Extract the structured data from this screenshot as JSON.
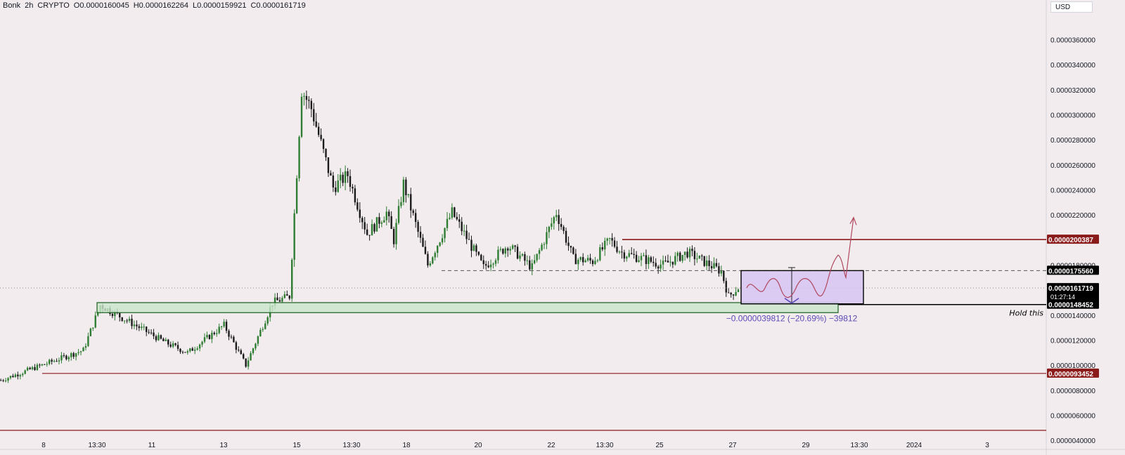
{
  "header": {
    "symbol": "Bonk",
    "interval": "2h",
    "exchange": "CRYPTO",
    "open": "O0.0000160045",
    "high": "H0.0000162264",
    "low": "L0.0000159921",
    "close": "C0.0000161719"
  },
  "currency": "USD",
  "colors": {
    "background": "#f2ecee",
    "bull": "#2e7d32",
    "bear": "#1b1b1b",
    "resistance": "#8b1a1a",
    "zone_fill": "#c8e6c9",
    "zone_stroke": "#1b5e20",
    "box_fill": "#d7c5f3",
    "measure_text": "#5b4bb7",
    "path": "#b0475d"
  },
  "chart_data": {
    "type": "candlestick",
    "interval": "2h",
    "ylim": [
      4.4e-06,
      3.76e-05
    ],
    "y_ticks": [
      "0.0000360000",
      "0.0000340000",
      "0.0000320000",
      "0.0000300000",
      "0.0000280000",
      "0.0000260000",
      "0.0000240000",
      "0.0000220000",
      "0.0000180000",
      "0.0000140000",
      "0.0000120000",
      "0.0000100000",
      "0.0000080000",
      "0.0000060000",
      "0.0000040000"
    ],
    "x_ticks": [
      "8",
      "13:30",
      "11",
      "13",
      "15",
      "13:30",
      "18",
      "20",
      "22",
      "13:30",
      "25",
      "27",
      "29",
      "13:30",
      "2024",
      "3"
    ],
    "price_labels": [
      {
        "value": "0.0000200387",
        "style": "red"
      },
      {
        "value": "0.0000175560",
        "style": "dark"
      },
      {
        "value": "0.0000161719",
        "style": "dark",
        "sub": "01:27:14"
      },
      {
        "value": "0.0000148452",
        "style": "dark"
      },
      {
        "value": "0.0000093452",
        "style": "red"
      }
    ],
    "levels": [
      {
        "price": 2.00387e-05,
        "kind": "resistance"
      },
      {
        "price": 1.7556e-05,
        "kind": "dashed"
      },
      {
        "price": 1.48452e-05,
        "kind": "support"
      },
      {
        "price": 9.3452e-06,
        "kind": "support-red"
      },
      {
        "price": 4.8e-06,
        "kind": "bottom-red"
      }
    ],
    "demand_zone": {
      "top": 1.5e-05,
      "bottom": 1.42e-05
    },
    "measure_text": "−0.0000039812 (−20.69%) −39812",
    "annotation": "Hold this",
    "path": [
      {
        "bar": 0,
        "price": 8.8e-06
      },
      {
        "bar": 14,
        "price": 9.8e-06
      },
      {
        "bar": 34,
        "price": 1.12e-05
      },
      {
        "bar": 41,
        "price": 1.48e-05
      },
      {
        "bar": 68,
        "price": 1.18e-05
      },
      {
        "bar": 77,
        "price": 1.1e-05
      },
      {
        "bar": 92,
        "price": 1.32e-05
      },
      {
        "bar": 101,
        "price": 1e-05
      },
      {
        "bar": 112,
        "price": 1.5e-05
      },
      {
        "bar": 119,
        "price": 1.55e-05
      },
      {
        "bar": 124,
        "price": 3.2e-05
      },
      {
        "bar": 128,
        "price": 3.05e-05
      },
      {
        "bar": 137,
        "price": 2.42e-05
      },
      {
        "bar": 143,
        "price": 2.52e-05
      },
      {
        "bar": 151,
        "price": 2.05e-05
      },
      {
        "bar": 159,
        "price": 2.22e-05
      },
      {
        "bar": 162,
        "price": 2e-05
      },
      {
        "bar": 166,
        "price": 2.45e-05
      },
      {
        "bar": 176,
        "price": 1.8e-05
      },
      {
        "bar": 186,
        "price": 2.22e-05
      },
      {
        "bar": 199,
        "price": 1.78e-05
      },
      {
        "bar": 209,
        "price": 1.96e-05
      },
      {
        "bar": 219,
        "price": 1.78e-05
      },
      {
        "bar": 229,
        "price": 2.22e-05
      },
      {
        "bar": 236,
        "price": 1.85e-05
      },
      {
        "bar": 244,
        "price": 1.83e-05
      },
      {
        "bar": 251,
        "price": 2e-05
      },
      {
        "bar": 256,
        "price": 1.9e-05
      },
      {
        "bar": 273,
        "price": 1.8e-05
      },
      {
        "bar": 283,
        "price": 1.9e-05
      },
      {
        "bar": 297,
        "price": 1.75e-05
      },
      {
        "bar": 300,
        "price": 1.55e-05
      },
      {
        "bar": 304,
        "price": 1.62e-05
      }
    ]
  }
}
